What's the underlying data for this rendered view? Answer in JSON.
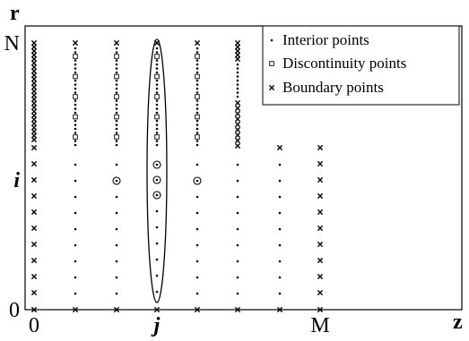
{
  "axes": {
    "x_name": "z",
    "y_name": "r",
    "x_ticks": [
      {
        "label": "0",
        "style": "normal",
        "col": 0
      },
      {
        "label": "j",
        "style": "italic",
        "col": 3
      },
      {
        "label": "M",
        "style": "normal",
        "col": 7
      }
    ],
    "y_ticks": [
      {
        "label": "N",
        "style": "normal",
        "row": 0
      },
      {
        "label": "i",
        "style": "italic",
        "row": 1
      },
      {
        "label": "0",
        "style": "normal",
        "row": 2
      }
    ]
  },
  "legend": {
    "position": "top-right",
    "items": [
      {
        "symbol": "dot",
        "label": "Interior points"
      },
      {
        "symbol": "square",
        "label": "Discontinuity points"
      },
      {
        "symbol": "cross",
        "label": "Boundary points"
      }
    ]
  },
  "grid_columns": [
    {
      "col": 0,
      "type": "boundary_full"
    },
    {
      "col": 1,
      "type": "interior_with_discontinuity"
    },
    {
      "col": 2,
      "type": "interior_with_discontinuity_and_circled_i"
    },
    {
      "col": 3,
      "type": "stencil_column"
    },
    {
      "col": 4,
      "type": "interior_with_discontinuity_and_circled_i"
    },
    {
      "col": 5,
      "type": "step_boundary"
    },
    {
      "col": 6,
      "type": "short_interior"
    },
    {
      "col": 7,
      "type": "boundary_short"
    }
  ]
}
